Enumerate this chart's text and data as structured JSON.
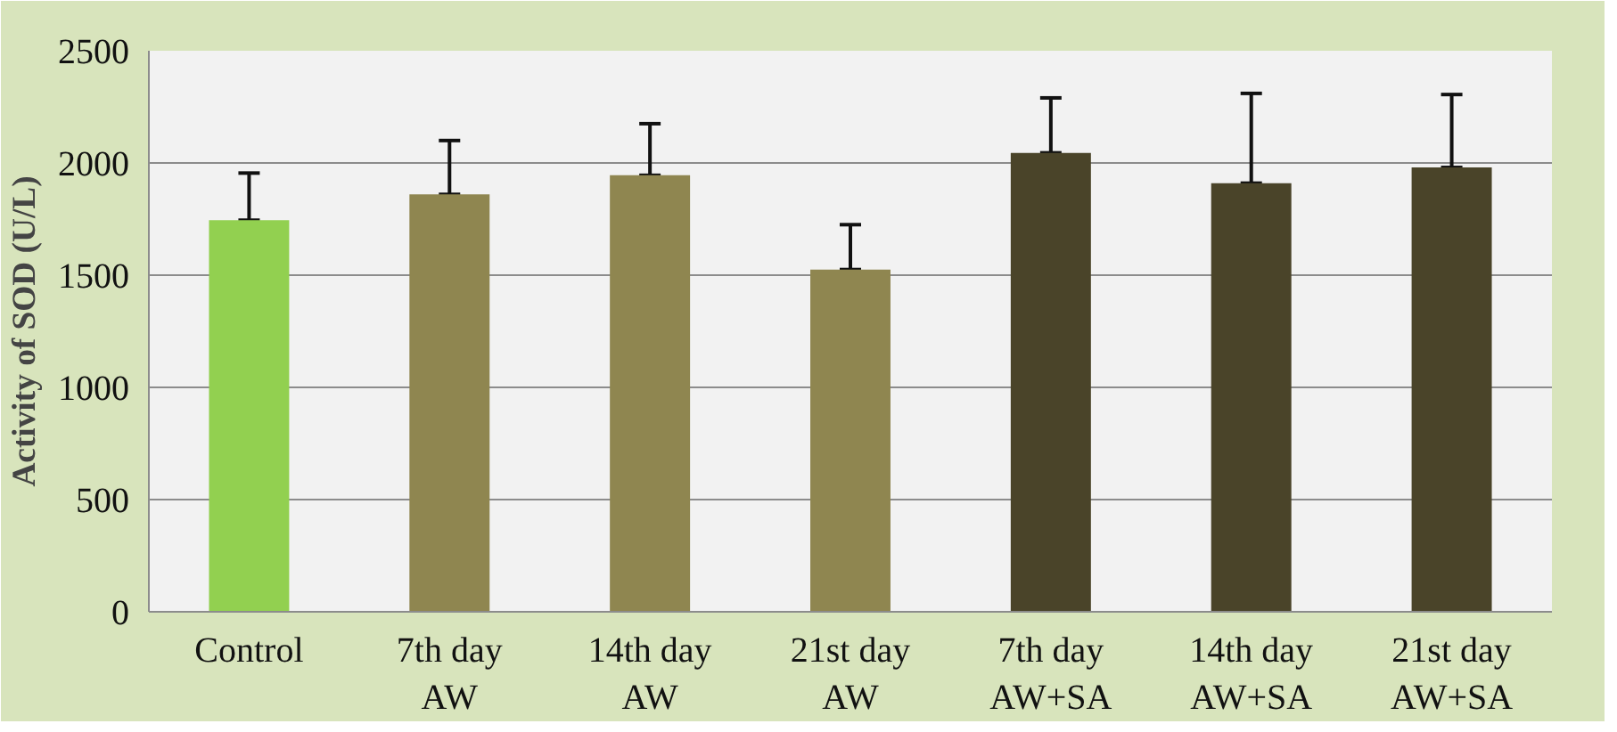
{
  "chart_data": {
    "type": "bar",
    "ylabel": "Activity of SOD (U/L)",
    "categories": [
      "Control",
      "7th day\nAW",
      "14th day\nAW",
      "21st day\nAW",
      "7th day\nAW+SA",
      "14th day\nAW+SA",
      "21st day\nAW+SA"
    ],
    "values": [
      1745,
      1860,
      1945,
      1525,
      2045,
      1910,
      1980
    ],
    "colors": [
      "#92d050",
      "#8f8650",
      "#8f8650",
      "#8f8650",
      "#4a4429",
      "#4a4429",
      "#4a4429"
    ],
    "errors": [
      [
        1745,
        1955
      ],
      [
        1860,
        2100
      ],
      [
        1945,
        2175
      ],
      [
        1525,
        1725
      ],
      [
        2045,
        2290
      ],
      [
        1910,
        2310
      ],
      [
        1980,
        2305
      ]
    ],
    "ylim": [
      0,
      2500
    ],
    "yticks": [
      0,
      500,
      1000,
      1500,
      2000,
      2500
    ],
    "grid": "y"
  }
}
